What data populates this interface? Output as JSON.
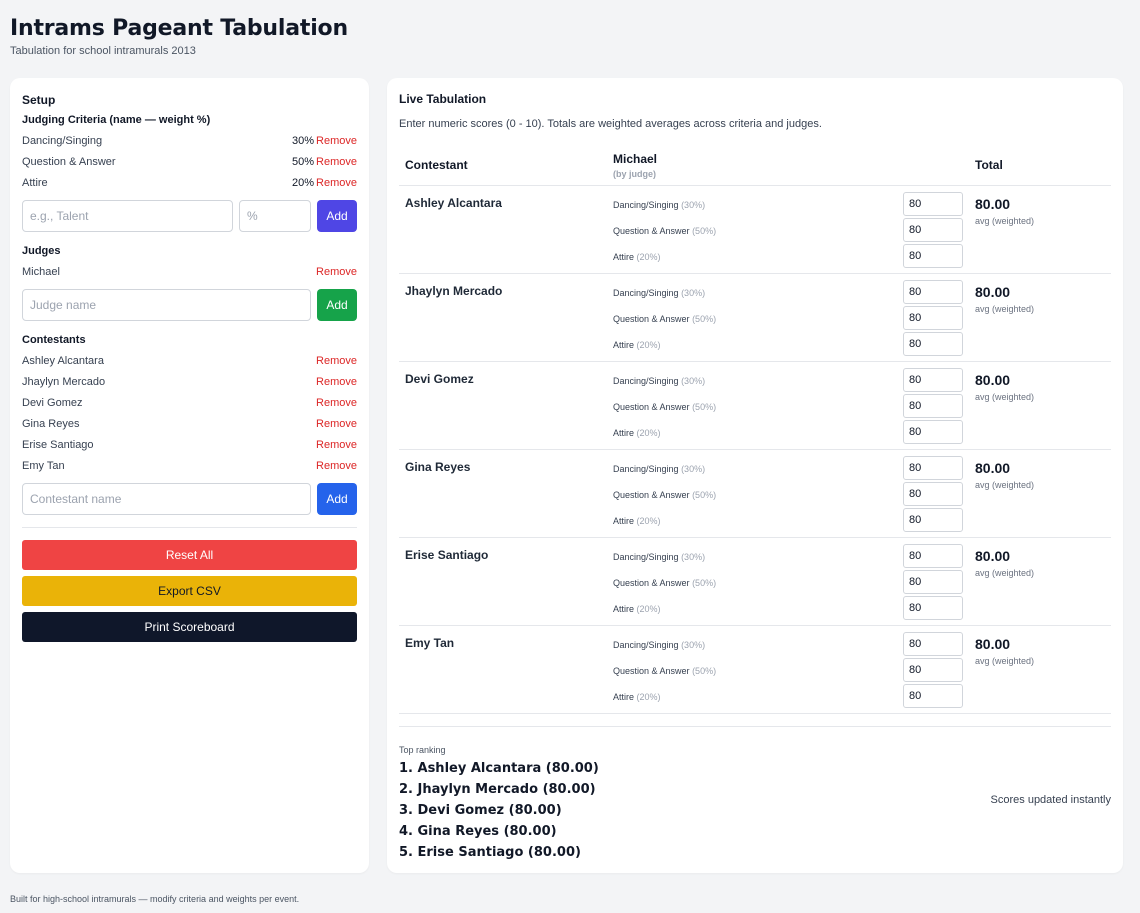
{
  "header": {
    "title": "Intrams Pageant Tabulation",
    "subtitle": "Tabulation for school intramurals 2013"
  },
  "setup": {
    "title": "Setup",
    "criteria_heading": "Judging Criteria (name — weight %)",
    "criteria": [
      {
        "name": "Dancing/Singing",
        "weight": "30%"
      },
      {
        "name": "Question & Answer",
        "weight": "50%"
      },
      {
        "name": "Attire",
        "weight": "20%"
      }
    ],
    "remove_label": "Remove",
    "criteria_name_placeholder": "e.g., Talent",
    "criteria_weight_placeholder": "%",
    "add_label": "Add",
    "judges_heading": "Judges",
    "judges": [
      "Michael"
    ],
    "judge_placeholder": "Judge name",
    "contestants_heading": "Contestants",
    "contestants": [
      "Ashley Alcantara",
      "Jhaylyn Mercado",
      "Devi Gomez",
      "Gina Reyes",
      "Erise Santiago",
      "Emy Tan"
    ],
    "contestant_placeholder": "Contestant name",
    "reset_label": "Reset All",
    "export_label": "Export CSV",
    "print_label": "Print Scoreboard"
  },
  "live": {
    "title": "Live Tabulation",
    "description": "Enter numeric scores (0 - 10). Totals are weighted averages across criteria and judges.",
    "col_contestant": "Contestant",
    "judge_name": "Michael",
    "judge_sub": "(by judge)",
    "col_total": "Total",
    "total_sub": "avg (weighted)",
    "criteria_labels": [
      {
        "name": "Dancing/Singing",
        "weight": "(30%)"
      },
      {
        "name": "Question & Answer",
        "weight": "(50%)"
      },
      {
        "name": "Attire",
        "weight": "(20%)"
      }
    ],
    "rows": [
      {
        "name": "Ashley Alcantara",
        "scores": [
          "80",
          "80",
          "80"
        ],
        "total": "80.00"
      },
      {
        "name": "Jhaylyn Mercado",
        "scores": [
          "80",
          "80",
          "80"
        ],
        "total": "80.00"
      },
      {
        "name": "Devi Gomez",
        "scores": [
          "80",
          "80",
          "80"
        ],
        "total": "80.00"
      },
      {
        "name": "Gina Reyes",
        "scores": [
          "80",
          "80",
          "80"
        ],
        "total": "80.00"
      },
      {
        "name": "Erise Santiago",
        "scores": [
          "80",
          "80",
          "80"
        ],
        "total": "80.00"
      },
      {
        "name": "Emy Tan",
        "scores": [
          "80",
          "80",
          "80"
        ],
        "total": "80.00"
      }
    ],
    "ranking_label": "Top ranking",
    "ranking": [
      "1. Ashley Alcantara (80.00)",
      "2. Jhaylyn Mercado (80.00)",
      "3. Devi Gomez (80.00)",
      "4. Gina Reyes (80.00)",
      "5. Erise Santiago (80.00)"
    ],
    "status": "Scores updated instantly"
  },
  "footer": "Built for high-school intramurals — modify criteria and weights per event.",
  "colors": {
    "add_criteria": "#4f46e5",
    "add_judge": "#16a34a",
    "add_contestant": "#2563eb",
    "reset": "#ef4444",
    "export": "#eab308",
    "print": "#0f172a",
    "remove": "#dc2626"
  }
}
